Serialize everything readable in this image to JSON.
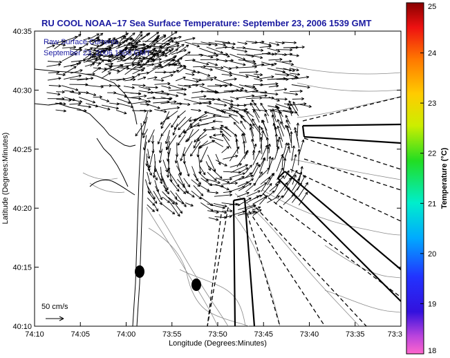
{
  "chart_data": {
    "type": "vector-field",
    "title": "RU COOL  NOAA−17  Sea Surface Temperature:  September 23, 2006 1539 GMT",
    "legend_lines": [
      "Raw Surface Currents",
      "September 23, 2006 1500 GMT"
    ],
    "xlabel": "Longitude (Degrees:Minutes)",
    "ylabel": "Latitude (Degrees:Minutes)",
    "x_ticks": [
      "74:10",
      "74:05",
      "74:00",
      "73:55",
      "73:50",
      "73:45",
      "73:40",
      "73:35",
      "73:3"
    ],
    "y_ticks": [
      "40:10",
      "40:15",
      "40:20",
      "40:25",
      "40:30",
      "40:35"
    ],
    "xlim_minutes_west": [
      -4450,
      -4410
    ],
    "ylim_minutes_north": [
      2410,
      2435
    ],
    "colorbar": {
      "label": "Temperature (°C)",
      "ticks": [
        "18",
        "19",
        "20",
        "21",
        "22",
        "23",
        "24",
        "25"
      ],
      "range": [
        18,
        25
      ]
    },
    "scale_label": "50 cm/s",
    "grid": false
  },
  "colors": {
    "title": "#1a1aa0",
    "arrows": "#000000",
    "coast": "#000000",
    "bathymetry": "#8a8a8a"
  }
}
